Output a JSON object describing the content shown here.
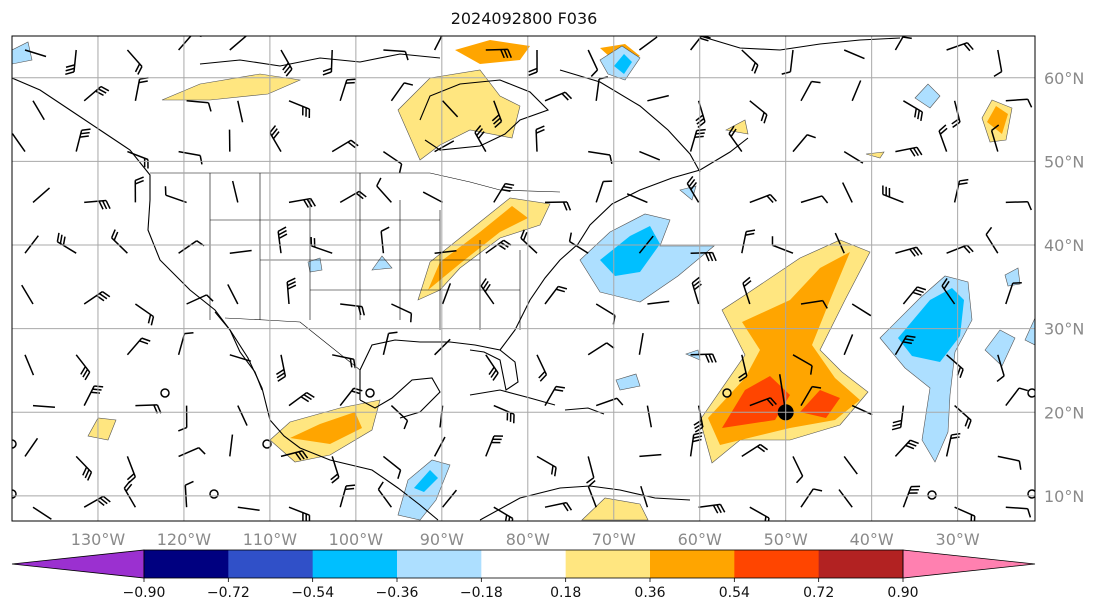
{
  "title": "2024092800 F036",
  "map": {
    "projection": "PlateCarree",
    "lon_range": [
      -140,
      -21
    ],
    "lat_range": [
      7,
      65
    ],
    "gridlines": true,
    "lon_ticks": [
      {
        "lon": -130,
        "label": "130°W"
      },
      {
        "lon": -120,
        "label": "120°W"
      },
      {
        "lon": -110,
        "label": "110°W"
      },
      {
        "lon": -100,
        "label": "100°W"
      },
      {
        "lon": -90,
        "label": "90°W"
      },
      {
        "lon": -80,
        "label": "80°W"
      },
      {
        "lon": -70,
        "label": "70°W"
      },
      {
        "lon": -60,
        "label": "60°W"
      },
      {
        "lon": -50,
        "label": "50°W"
      },
      {
        "lon": -40,
        "label": "40°W"
      },
      {
        "lon": -30,
        "label": "30°W"
      }
    ],
    "lat_ticks": [
      {
        "lat": 60,
        "label": "60°N"
      },
      {
        "lat": 50,
        "label": "50°N"
      },
      {
        "lat": 40,
        "label": "40°N"
      },
      {
        "lat": 30,
        "label": "30°N"
      },
      {
        "lat": 20,
        "label": "20°N"
      },
      {
        "lat": 10,
        "label": "10°N"
      }
    ],
    "low_center_marker": {
      "lon": -50,
      "lat": 20
    }
  },
  "colorbar": {
    "extend": "both",
    "colors": {
      "below": "#9b30d0",
      "bins": [
        "#000080",
        "#3050c8",
        "#00bfff",
        "#addfff",
        "#ffffff",
        "#ffe680",
        "#ffa500",
        "#ff4500",
        "#b22222"
      ],
      "above": "#ff80b0"
    },
    "ticks": [
      "−0.90",
      "−0.72",
      "−0.54",
      "−0.36",
      "−0.18",
      "0.18",
      "0.36",
      "0.54",
      "0.72",
      "0.90"
    ]
  },
  "colors": {
    "gridline": "#a8a8a8",
    "coastline": "#000000",
    "axis_label": "#8a8a8a"
  }
}
